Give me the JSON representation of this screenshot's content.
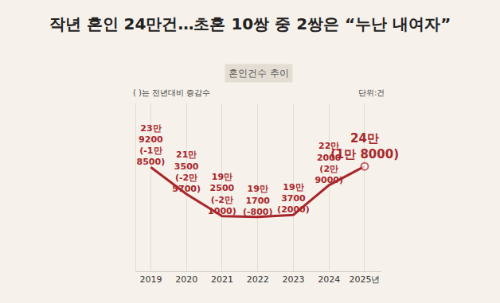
{
  "chart_data": {
    "type": "line",
    "title": "작년 혼인 24만건…초혼 10쌍 중 2쌍은 “누난 내여자”",
    "subtitle": "혼인건수 추이",
    "annotations": [
      "( )는 전년대비 증감수",
      "단위:건"
    ],
    "categories": [
      "2019",
      "2020",
      "2021",
      "2022",
      "2023",
      "2024",
      "2025년"
    ],
    "values": [
      239200,
      213500,
      192500,
      191700,
      193700,
      222000,
      240000
    ],
    "value_labels": [
      "23만 9200",
      "21만 3500",
      "19만 2500",
      "19만 1700",
      "19만 3700",
      "22만 2000",
      "24만"
    ],
    "changes": [
      -18500,
      -25700,
      -21000,
      -800,
      2000,
      29000,
      18000
    ],
    "change_labels": [
      "(-1만 8500)",
      "(-2만 5700)",
      "(-2만 1000)",
      "(-800)",
      "(2000)",
      "(2만 9000)",
      "(1만 8000)"
    ],
    "color": "#a8262b",
    "marker": "end",
    "ylim": [
      140000,
      300000
    ],
    "yticks": [],
    "grid": true,
    "data_labels": true,
    "tick_labels": "x"
  }
}
